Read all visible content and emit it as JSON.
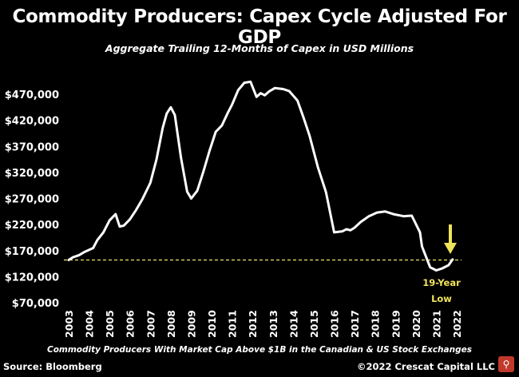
{
  "chart_data": {
    "type": "line",
    "title": "Commodity Producers: Capex Cycle Adjusted For GDP",
    "subtitle": "Aggregate Trailing 12-Months of Capex in USD Millions",
    "footnote": "Commodity Producers With Market Cap Above $1B in the Canadian & US Stock Exchanges",
    "source": "Source: Bloomberg",
    "copyright": "©2022 Crescat Capital LLC",
    "xlabel": "",
    "ylabel": "",
    "y_ticks": [
      "$70,000",
      "$120,000",
      "$170,000",
      "$220,000",
      "$270,000",
      "$320,000",
      "$370,000",
      "$420,000",
      "$470,000"
    ],
    "y_tick_values": [
      70000,
      120000,
      170000,
      220000,
      270000,
      320000,
      370000,
      420000,
      470000
    ],
    "x_ticks": [
      "2003",
      "2004",
      "2005",
      "2006",
      "2007",
      "2008",
      "2009",
      "2010",
      "2011",
      "2012",
      "2013",
      "2014",
      "2015",
      "2016",
      "2017",
      "2018",
      "2019",
      "2020",
      "2021",
      "2022"
    ],
    "ylim": [
      70000,
      500000
    ],
    "xlim": [
      2003,
      2022
    ],
    "grid": false,
    "colors": {
      "line": "#ffffff",
      "reference": "#e8e86a",
      "annotation": "#f0e45a",
      "background": "#000000"
    },
    "reference_line": {
      "y": 152000,
      "style": "dashed"
    },
    "annotation": {
      "text_line1": "19-Year",
      "text_line2": "Low",
      "arrow": "down"
    },
    "series": [
      {
        "x": [
          2003.0,
          2003.2,
          2003.5,
          2003.8,
          2004.2,
          2004.4,
          2004.7,
          2005.0,
          2005.3,
          2005.5,
          2005.7,
          2006.0,
          2006.3,
          2006.6,
          2007.0,
          2007.3,
          2007.6,
          2007.8,
          2008.0,
          2008.2,
          2008.5,
          2008.8,
          2009.0,
          2009.3,
          2009.6,
          2009.9,
          2010.2,
          2010.5,
          2010.8,
          2011.0,
          2011.3,
          2011.6,
          2011.9,
          2012.2,
          2012.4,
          2012.6,
          2012.8,
          2013.1,
          2013.5,
          2013.8,
          2014.2,
          2014.5,
          2014.8,
          2015.2,
          2015.6,
          2016.0,
          2016.4,
          2016.6,
          2016.8,
          2017.0,
          2017.3,
          2017.7,
          2018.1,
          2018.5,
          2018.9,
          2019.4,
          2019.8,
          2020.2,
          2020.3,
          2020.5,
          2020.7,
          2021.0,
          2021.3,
          2021.6,
          2021.8
        ],
        "values": [
          152000,
          157000,
          161000,
          168000,
          175000,
          190000,
          205000,
          228000,
          240000,
          216000,
          218000,
          230000,
          248000,
          268000,
          300000,
          345000,
          405000,
          433000,
          445000,
          430000,
          348000,
          283000,
          270000,
          285000,
          322000,
          362000,
          398000,
          410000,
          435000,
          450000,
          478000,
          492000,
          494000,
          465000,
          472000,
          468000,
          475000,
          482000,
          480000,
          476000,
          458000,
          425000,
          390000,
          330000,
          282000,
          205000,
          207000,
          211000,
          209000,
          214000,
          225000,
          236000,
          243000,
          245000,
          240000,
          236000,
          237000,
          205000,
          178000,
          158000,
          138000,
          132000,
          136000,
          142000,
          153000
        ]
      }
    ]
  }
}
